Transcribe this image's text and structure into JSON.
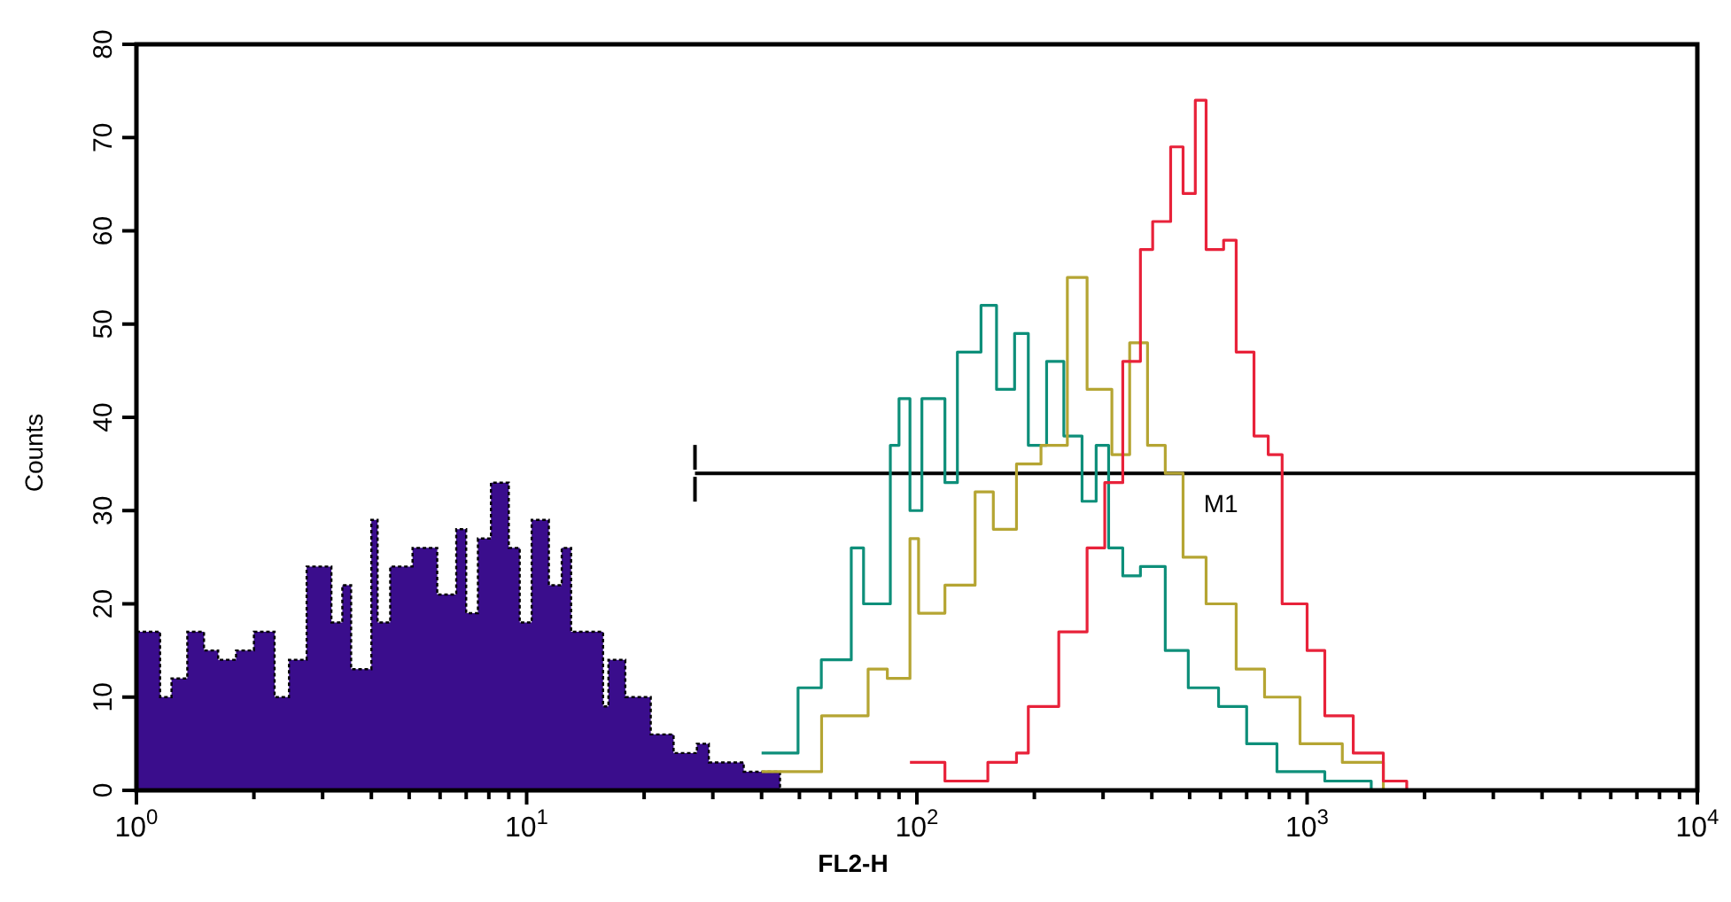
{
  "chart_data": {
    "type": "step",
    "xlabel": "FL2-H",
    "ylabel": "Counts",
    "log": "x",
    "xlim": [
      1,
      10000
    ],
    "xticks": [
      {
        "value": 1,
        "label": "10$^{0}$"
      },
      {
        "value": 2,
        "label": null
      },
      {
        "value": 3,
        "label": null
      },
      {
        "value": 4,
        "label": null
      },
      {
        "value": 5,
        "label": null
      },
      {
        "value": 6,
        "label": null
      },
      {
        "value": 7,
        "label": null
      },
      {
        "value": 8,
        "label": null
      },
      {
        "value": 9,
        "label": null
      },
      {
        "value": 10,
        "label": "10$^{1}$"
      },
      {
        "value": 20,
        "label": null
      },
      {
        "value": 30,
        "label": null
      },
      {
        "value": 40,
        "label": null
      },
      {
        "value": 50,
        "label": null
      },
      {
        "value": 60,
        "label": null
      },
      {
        "value": 70,
        "label": null
      },
      {
        "value": 80,
        "label": null
      },
      {
        "value": 90,
        "label": null
      },
      {
        "value": 100,
        "label": "10$^{2}$"
      },
      {
        "value": 200,
        "label": null
      },
      {
        "value": 300,
        "label": null
      },
      {
        "value": 400,
        "label": null
      },
      {
        "value": 500,
        "label": null
      },
      {
        "value": 600,
        "label": null
      },
      {
        "value": 700,
        "label": null
      },
      {
        "value": 800,
        "label": null
      },
      {
        "value": 900,
        "label": null
      },
      {
        "value": 1000,
        "label": "10$^{3}$"
      },
      {
        "value": 2000,
        "label": null
      },
      {
        "value": 3000,
        "label": null
      },
      {
        "value": 4000,
        "label": null
      },
      {
        "value": 5000,
        "label": null
      },
      {
        "value": 6000,
        "label": null
      },
      {
        "value": 7000,
        "label": null
      },
      {
        "value": 8000,
        "label": null
      },
      {
        "value": 9000,
        "label": null
      },
      {
        "value": 10000,
        "label": "10$^{4}$"
      }
    ],
    "ylim": [
      0,
      80
    ],
    "yticks": [
      0,
      10,
      20,
      30,
      40,
      50,
      60,
      70,
      80
    ],
    "grid": false,
    "series": [
      {
        "type": "line",
        "name": "M1",
        "color": "#000000",
        "x": [
          27,
          10000
        ],
        "values": [
          34,
          34
        ]
      },
      {
        "type": "area",
        "color": "#3a0d8c",
        "x": [
          1,
          1.15,
          1.23,
          1.35,
          1.49,
          1.62,
          1.8,
          2,
          2.26,
          2.46,
          2.73,
          3.16,
          3.37,
          3.55,
          4,
          4.15,
          4.47,
          5.1,
          5.9,
          6.6,
          7,
          7.5,
          8.1,
          9,
          9.6,
          10.3,
          11.4,
          12.3,
          13,
          14.6,
          15.7,
          16.2,
          17.9,
          20.8,
          23.8,
          27.3,
          29.3,
          36,
          44.6
        ],
        "values": [
          17,
          10,
          12,
          17,
          15,
          14,
          15,
          17,
          10,
          14,
          24,
          18,
          22,
          13,
          29,
          18,
          24,
          26,
          21,
          28,
          19,
          27,
          33,
          26,
          18,
          29,
          22,
          26,
          17,
          17,
          9,
          14,
          10,
          6,
          4,
          5,
          3,
          2,
          0
        ]
      },
      {
        "color": "#0e8f7a",
        "x": [
          40,
          49.6,
          56.9,
          67.9,
          73,
          85.5,
          90,
          96,
          103,
          118,
          127,
          146,
          160,
          178,
          193,
          215,
          238,
          265,
          288,
          310,
          337,
          374,
          433,
          496,
          593,
          700,
          837,
          1110,
          1460
        ],
        "values": [
          4,
          11,
          14,
          26,
          20,
          37,
          42,
          30,
          42,
          33,
          47,
          52,
          43,
          49,
          37,
          46,
          38,
          31,
          37,
          26,
          23,
          24,
          15,
          11,
          9,
          5,
          2,
          1,
          0
        ]
      },
      {
        "color": "#b5a533",
        "x": [
          40,
          57,
          75,
          84,
          96,
          101,
          118,
          141,
          157,
          180,
          208,
          243,
          273,
          316,
          351,
          390,
          433,
          481,
          551,
          658,
          778,
          959,
          1231,
          1568
        ],
        "values": [
          2,
          8,
          13,
          12,
          27,
          19,
          22,
          32,
          28,
          35,
          37,
          55,
          43,
          36,
          48,
          37,
          34,
          25,
          20,
          13,
          10,
          5,
          3,
          0
        ]
      },
      {
        "color": "#e8223a",
        "x": [
          96,
          118,
          152,
          180,
          193,
          231,
          273,
          303,
          337,
          374,
          402,
          447,
          481,
          517,
          551,
          611,
          658,
          731,
          795,
          863,
          1000,
          1110,
          1313,
          1568,
          1800
        ],
        "values": [
          3,
          1,
          3,
          4,
          9,
          17,
          26,
          33,
          46,
          58,
          61,
          69,
          64,
          74,
          58,
          59,
          47,
          38,
          36,
          20,
          15,
          8,
          4,
          1,
          0
        ]
      }
    ]
  }
}
